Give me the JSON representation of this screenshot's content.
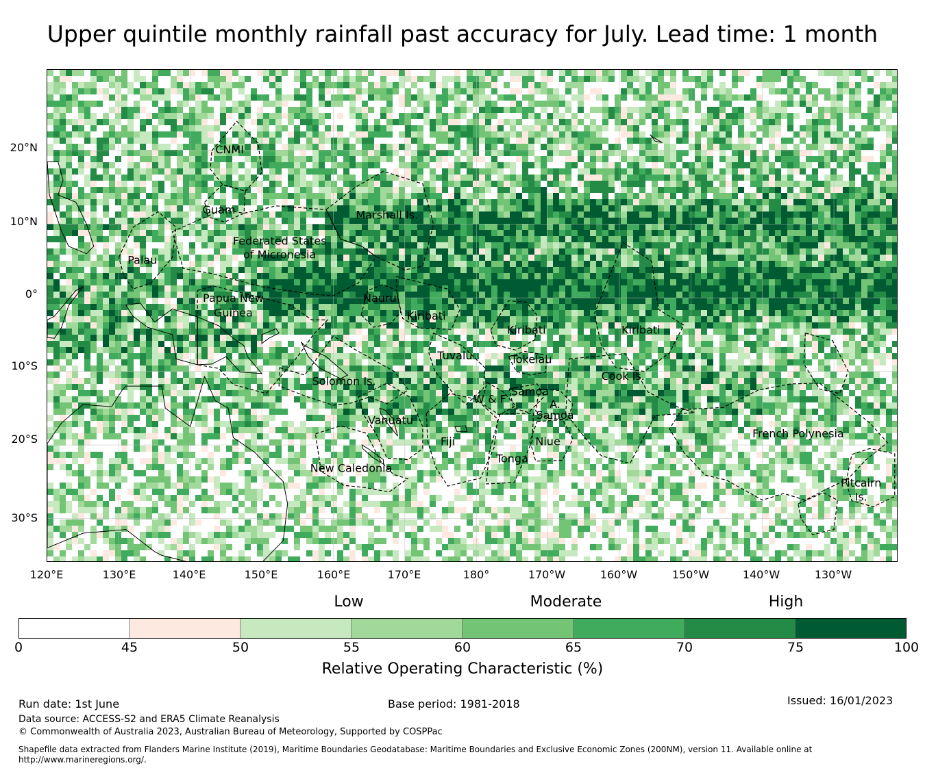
{
  "title": "Upper quintile monthly rainfall past accuracy for July. Lead time: 1 month",
  "map": {
    "lat_labels": [
      "20°N",
      "10°N",
      "0°",
      "10°S",
      "20°S",
      "30°S"
    ],
    "lon_labels": [
      "120°E",
      "130°E",
      "140°E",
      "150°E",
      "160°E",
      "170°E",
      "180°",
      "170°W",
      "160°W",
      "150°W",
      "140°W",
      "130°W"
    ],
    "extent": {
      "lon_min": 120,
      "lon_max": 239,
      "lat_min": -36,
      "lat_max": 31
    },
    "regions": [
      {
        "name": "CNMI",
        "lon": 145.5,
        "lat": 20.2
      },
      {
        "name": "Guam",
        "lon": 144.0,
        "lat": 12.0
      },
      {
        "name": "Marshall Is.",
        "lon": 167.5,
        "lat": 11.3
      },
      {
        "name": "Federated States",
        "lon": 152.5,
        "lat": 7.8
      },
      {
        "name": "of Micronesia",
        "lon": 152.5,
        "lat": 5.9
      },
      {
        "name": "Palau",
        "lon": 133.3,
        "lat": 5.2
      },
      {
        "name": "Papua New",
        "lon": 146.0,
        "lat": 0.0
      },
      {
        "name": "Guinea",
        "lon": 146.0,
        "lat": -2.0
      },
      {
        "name": "Nauru",
        "lon": 166.5,
        "lat": 0.0
      },
      {
        "name": "Kiribati",
        "lon": 173.0,
        "lat": -2.4
      },
      {
        "name": "Kiribati",
        "lon": 187.0,
        "lat": -4.3
      },
      {
        "name": "Kiribati",
        "lon": 203.0,
        "lat": -4.3
      },
      {
        "name": "Tuvalu",
        "lon": 177.0,
        "lat": -7.8
      },
      {
        "name": "Tokelau",
        "lon": 187.7,
        "lat": -8.3
      },
      {
        "name": "Cook Is.",
        "lon": 200.5,
        "lat": -10.6
      },
      {
        "name": "Solomon Is.",
        "lon": 161.5,
        "lat": -11.3
      },
      {
        "name": "Samoa",
        "lon": 187.5,
        "lat": -12.7
      },
      {
        "name": "W & F",
        "lon": 181.9,
        "lat": -13.7
      },
      {
        "name": "A.",
        "lon": 191.0,
        "lat": -14.4
      },
      {
        "name": "Samoa",
        "lon": 191.0,
        "lat": -15.9
      },
      {
        "name": "Vanuatu",
        "lon": 168.0,
        "lat": -16.6
      },
      {
        "name": "French Polynesia",
        "lon": 225.0,
        "lat": -18.4
      },
      {
        "name": "Fiji",
        "lon": 176.0,
        "lat": -19.5
      },
      {
        "name": "Niue",
        "lon": 190.0,
        "lat": -19.5
      },
      {
        "name": "Tonga",
        "lon": 185.0,
        "lat": -21.8
      },
      {
        "name": "New Caledonia",
        "lon": 162.5,
        "lat": -23.1
      },
      {
        "name": "Pitcairn",
        "lon": 233.8,
        "lat": -25.1
      },
      {
        "name": "Is.",
        "lon": 233.8,
        "lat": -27.0
      }
    ]
  },
  "colorbar": {
    "categories": [
      "Low",
      "Moderate",
      "High"
    ],
    "ticks": [
      "0",
      "45",
      "50",
      "55",
      "60",
      "65",
      "70",
      "75",
      "100"
    ],
    "colors": [
      "#ffffff",
      "#fee9e0",
      "#c7e9c0",
      "#a1d99b",
      "#74c476",
      "#41ab5d",
      "#238b45",
      "#005a32"
    ],
    "label": "Relative Operating Characteristic (%)"
  },
  "footer": {
    "run_date": "Run date: 1st June",
    "base_period": "Base period: 1981-2018",
    "issued": "Issued: 16/01/2023",
    "data_source": "Data source: ACCESS-S2 and ERA5 Climate Reanalysis",
    "copyright": "© Commonwealth of Australia 2023, Australian Bureau of Meteorology, Supported by COSPPac",
    "shapefile_line1": "Shapefile data extracted from Flanders Marine Institute (2019), Maritime Boundaries Geodatabase: Maritime Boundaries and Exclusive Economic Zones (200NM), version 11. Available online at",
    "shapefile_line2": "http://www.marineregions.org/."
  }
}
